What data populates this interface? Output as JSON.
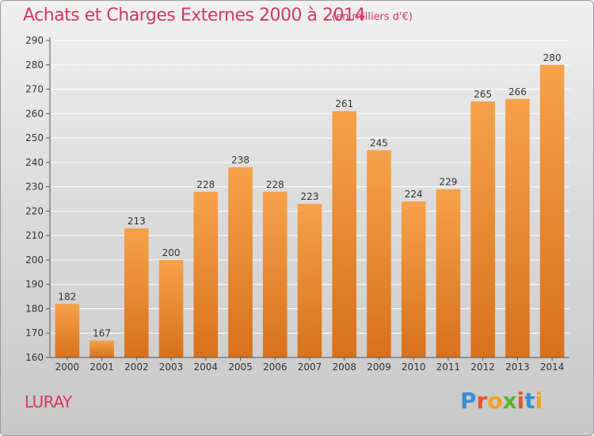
{
  "header": {
    "title": "Achats et Charges Externes 2000 à 2014",
    "subtitle": "(en milliers d'€)"
  },
  "footer": {
    "location": "LURAY",
    "logo_text": "Proxiti",
    "logo_colors": [
      "#3a8fd6",
      "#e8562a",
      "#f2a21c",
      "#59b52f",
      "#e8562a",
      "#3a8fd6",
      "#f2a21c"
    ]
  },
  "colors": {
    "bar_top": "#f6a24a",
    "bar_bottom": "#d9711c",
    "title": "#d23a64",
    "grid": "#ffffff"
  },
  "chart_data": {
    "type": "bar",
    "title": "Achats et Charges Externes 2000 à 2014",
    "xlabel": "",
    "ylabel": "",
    "categories": [
      "2000",
      "2001",
      "2002",
      "2003",
      "2004",
      "2005",
      "2006",
      "2007",
      "2008",
      "2009",
      "2010",
      "2011",
      "2012",
      "2013",
      "2014"
    ],
    "values": [
      182,
      167,
      213,
      200,
      228,
      238,
      228,
      223,
      261,
      245,
      224,
      229,
      265,
      266,
      280
    ],
    "ylim": [
      160,
      290
    ],
    "yticks": [
      160,
      170,
      180,
      190,
      200,
      210,
      220,
      230,
      240,
      250,
      260,
      270,
      280,
      290
    ],
    "grid": true,
    "data_labels": true
  }
}
